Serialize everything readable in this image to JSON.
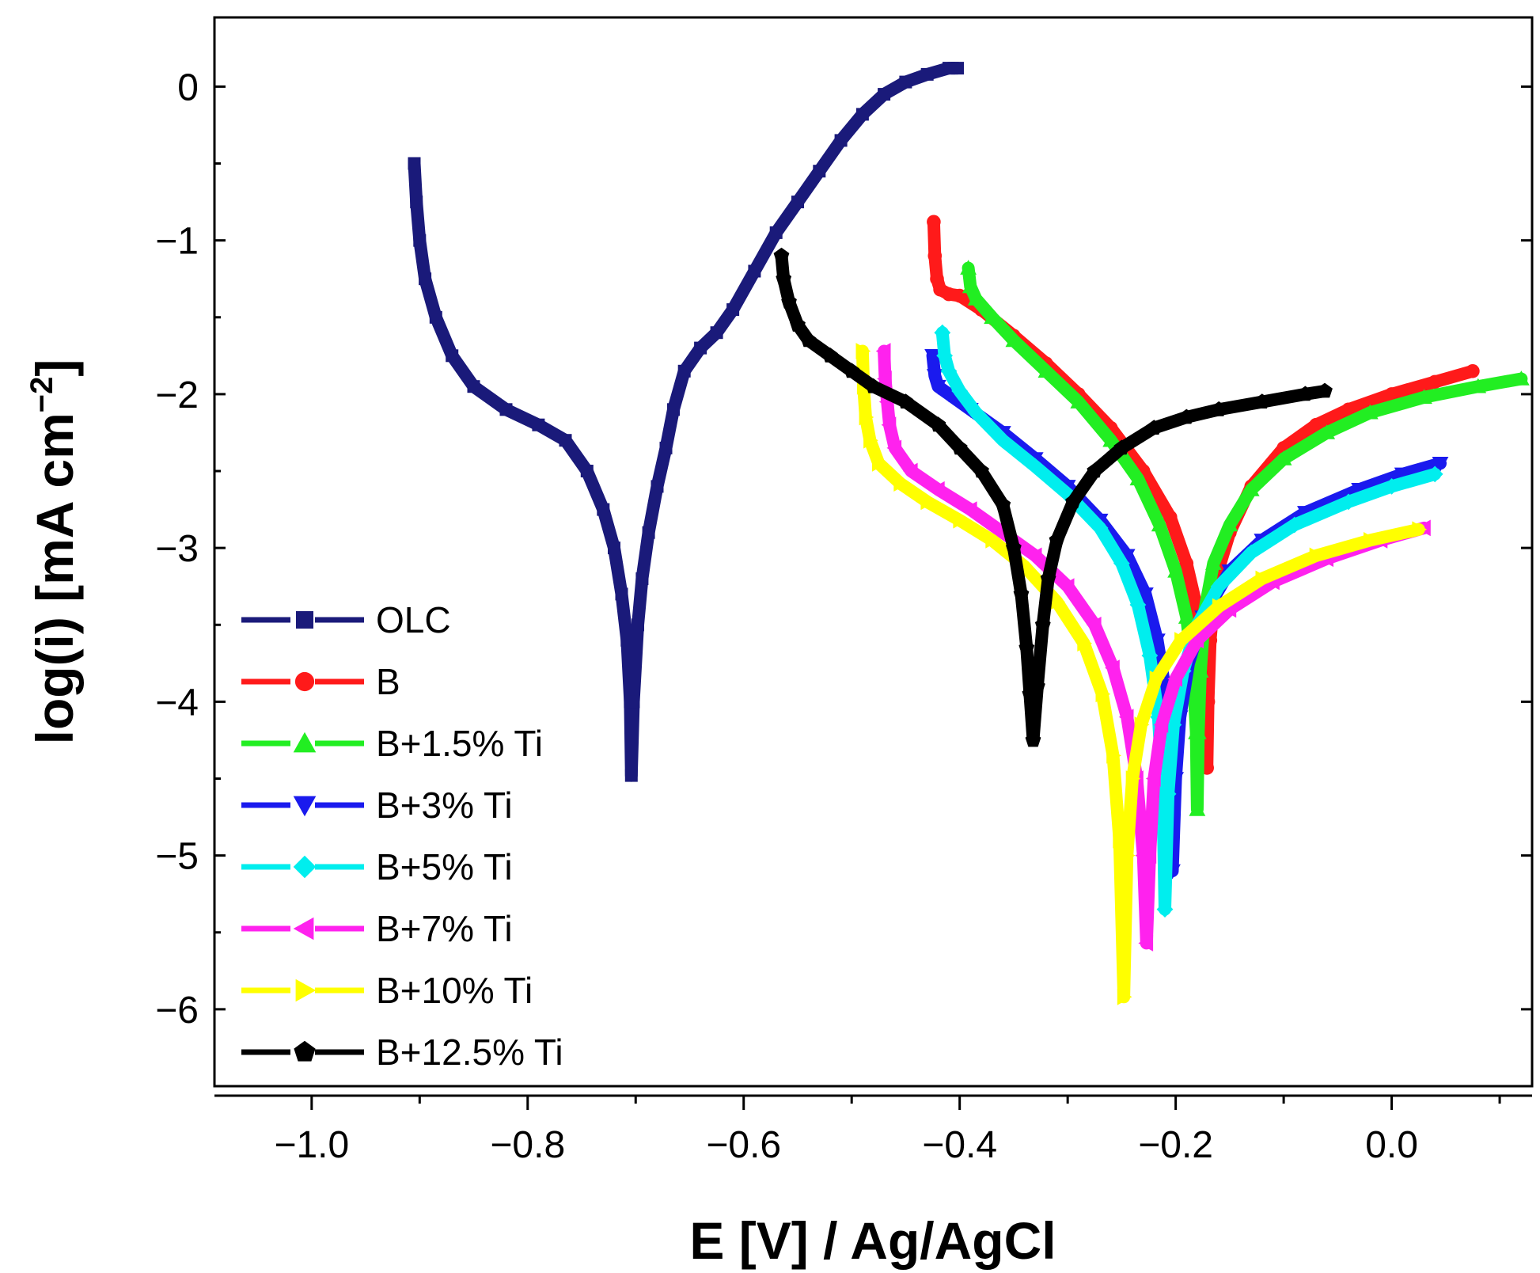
{
  "chart_data": {
    "type": "line",
    "title": "",
    "xlabel": "E [V] / Ag/AgCl",
    "ylabel_main": "log(i) [mA cm",
    "ylabel_sup": "−2",
    "ylabel_close": "]",
    "xlim": [
      -1.09,
      0.13
    ],
    "ylim": [
      -6.5,
      0.45
    ],
    "xticks": [
      -1.0,
      -0.8,
      -0.6,
      -0.4,
      -0.2,
      0.0
    ],
    "xtick_labels": [
      "−1.0",
      "−0.8",
      "−0.6",
      "−0.4",
      "−0.2",
      "0.0"
    ],
    "yticks": [
      0,
      -1,
      -2,
      -3,
      -4,
      -5,
      -6
    ],
    "ytick_labels": [
      "0",
      "−1",
      "−2",
      "−3",
      "−4",
      "−5",
      "−6"
    ],
    "grid": false,
    "legend_position": "bottom-left",
    "series": [
      {
        "name": "OLC",
        "color": "#1a1a7a",
        "marker": "square",
        "points": [
          [
            -0.905,
            -0.5
          ],
          [
            -0.903,
            -0.75
          ],
          [
            -0.9,
            -1.0
          ],
          [
            -0.895,
            -1.25
          ],
          [
            -0.885,
            -1.5
          ],
          [
            -0.87,
            -1.75
          ],
          [
            -0.85,
            -1.95
          ],
          [
            -0.82,
            -2.1
          ],
          [
            -0.79,
            -2.2
          ],
          [
            -0.765,
            -2.3
          ],
          [
            -0.745,
            -2.5
          ],
          [
            -0.73,
            -2.75
          ],
          [
            -0.72,
            -3.0
          ],
          [
            -0.713,
            -3.3
          ],
          [
            -0.708,
            -3.6
          ],
          [
            -0.705,
            -4.0
          ],
          [
            -0.704,
            -4.48
          ],
          [
            -0.702,
            -4.0
          ],
          [
            -0.698,
            -3.5
          ],
          [
            -0.694,
            -3.2
          ],
          [
            -0.688,
            -2.9
          ],
          [
            -0.68,
            -2.6
          ],
          [
            -0.672,
            -2.35
          ],
          [
            -0.665,
            -2.1
          ],
          [
            -0.655,
            -1.85
          ],
          [
            -0.64,
            -1.7
          ],
          [
            -0.625,
            -1.6
          ],
          [
            -0.61,
            -1.45
          ],
          [
            -0.59,
            -1.2
          ],
          [
            -0.57,
            -0.95
          ],
          [
            -0.55,
            -0.75
          ],
          [
            -0.53,
            -0.55
          ],
          [
            -0.51,
            -0.35
          ],
          [
            -0.49,
            -0.18
          ],
          [
            -0.47,
            -0.05
          ],
          [
            -0.45,
            0.03
          ],
          [
            -0.43,
            0.08
          ],
          [
            -0.41,
            0.12
          ],
          [
            -0.402,
            0.12
          ]
        ]
      },
      {
        "name": "B",
        "color": "#ff1a1a",
        "marker": "circle",
        "points": [
          [
            -0.424,
            -0.88
          ],
          [
            -0.423,
            -1.1
          ],
          [
            -0.421,
            -1.25
          ],
          [
            -0.418,
            -1.32
          ],
          [
            -0.41,
            -1.35
          ],
          [
            -0.4,
            -1.36
          ],
          [
            -0.38,
            -1.45
          ],
          [
            -0.35,
            -1.62
          ],
          [
            -0.32,
            -1.8
          ],
          [
            -0.29,
            -2.0
          ],
          [
            -0.26,
            -2.22
          ],
          [
            -0.23,
            -2.5
          ],
          [
            -0.205,
            -2.8
          ],
          [
            -0.19,
            -3.1
          ],
          [
            -0.18,
            -3.4
          ],
          [
            -0.175,
            -3.7
          ],
          [
            -0.172,
            -4.0
          ],
          [
            -0.171,
            -4.43
          ],
          [
            -0.17,
            -4.0
          ],
          [
            -0.168,
            -3.6
          ],
          [
            -0.163,
            -3.2
          ],
          [
            -0.15,
            -2.9
          ],
          [
            -0.13,
            -2.6
          ],
          [
            -0.1,
            -2.35
          ],
          [
            -0.07,
            -2.2
          ],
          [
            -0.04,
            -2.1
          ],
          [
            0.0,
            -2.0
          ],
          [
            0.04,
            -1.92
          ],
          [
            0.075,
            -1.85
          ]
        ]
      },
      {
        "name": "B+1.5% Ti",
        "color": "#22ee22",
        "marker": "triangle-up",
        "points": [
          [
            -0.392,
            -1.18
          ],
          [
            -0.39,
            -1.3
          ],
          [
            -0.385,
            -1.38
          ],
          [
            -0.37,
            -1.5
          ],
          [
            -0.35,
            -1.65
          ],
          [
            -0.32,
            -1.85
          ],
          [
            -0.29,
            -2.05
          ],
          [
            -0.26,
            -2.3
          ],
          [
            -0.235,
            -2.55
          ],
          [
            -0.215,
            -2.85
          ],
          [
            -0.2,
            -3.15
          ],
          [
            -0.19,
            -3.45
          ],
          [
            -0.184,
            -3.8
          ],
          [
            -0.181,
            -4.2
          ],
          [
            -0.18,
            -4.7
          ],
          [
            -0.179,
            -4.2
          ],
          [
            -0.177,
            -3.8
          ],
          [
            -0.173,
            -3.4
          ],
          [
            -0.165,
            -3.1
          ],
          [
            -0.15,
            -2.85
          ],
          [
            -0.13,
            -2.62
          ],
          [
            -0.1,
            -2.42
          ],
          [
            -0.06,
            -2.25
          ],
          [
            -0.02,
            -2.12
          ],
          [
            0.03,
            -2.02
          ],
          [
            0.08,
            -1.95
          ],
          [
            0.12,
            -1.9
          ]
        ]
      },
      {
        "name": "B+3% Ti",
        "color": "#1a1aee",
        "marker": "triangle-down",
        "points": [
          [
            -0.425,
            -1.75
          ],
          [
            -0.423,
            -1.88
          ],
          [
            -0.42,
            -1.95
          ],
          [
            -0.41,
            -2.0
          ],
          [
            -0.39,
            -2.1
          ],
          [
            -0.36,
            -2.25
          ],
          [
            -0.33,
            -2.42
          ],
          [
            -0.3,
            -2.6
          ],
          [
            -0.27,
            -2.82
          ],
          [
            -0.245,
            -3.05
          ],
          [
            -0.228,
            -3.3
          ],
          [
            -0.217,
            -3.6
          ],
          [
            -0.209,
            -3.95
          ],
          [
            -0.205,
            -4.4
          ],
          [
            -0.203,
            -5.1
          ],
          [
            -0.2,
            -4.5
          ],
          [
            -0.196,
            -4.1
          ],
          [
            -0.188,
            -3.75
          ],
          [
            -0.175,
            -3.45
          ],
          [
            -0.15,
            -3.15
          ],
          [
            -0.12,
            -2.95
          ],
          [
            -0.08,
            -2.77
          ],
          [
            -0.03,
            -2.62
          ],
          [
            0.01,
            -2.52
          ],
          [
            0.045,
            -2.45
          ]
        ]
      },
      {
        "name": "B+5% Ti",
        "color": "#00eeee",
        "marker": "diamond",
        "points": [
          [
            -0.416,
            -1.6
          ],
          [
            -0.414,
            -1.75
          ],
          [
            -0.41,
            -1.85
          ],
          [
            -0.4,
            -1.98
          ],
          [
            -0.385,
            -2.12
          ],
          [
            -0.36,
            -2.3
          ],
          [
            -0.33,
            -2.47
          ],
          [
            -0.3,
            -2.65
          ],
          [
            -0.27,
            -2.87
          ],
          [
            -0.25,
            -3.1
          ],
          [
            -0.235,
            -3.37
          ],
          [
            -0.224,
            -3.7
          ],
          [
            -0.216,
            -4.1
          ],
          [
            -0.212,
            -4.6
          ],
          [
            -0.21,
            -5.35
          ],
          [
            -0.207,
            -4.6
          ],
          [
            -0.202,
            -4.15
          ],
          [
            -0.193,
            -3.8
          ],
          [
            -0.18,
            -3.5
          ],
          [
            -0.16,
            -3.25
          ],
          [
            -0.13,
            -3.03
          ],
          [
            -0.09,
            -2.85
          ],
          [
            -0.04,
            -2.7
          ],
          [
            0.0,
            -2.6
          ],
          [
            0.04,
            -2.52
          ]
        ]
      },
      {
        "name": "B+7% Ti",
        "color": "#ff22ee",
        "marker": "triangle-left",
        "points": [
          [
            -0.47,
            -1.72
          ],
          [
            -0.469,
            -1.9
          ],
          [
            -0.467,
            -2.05
          ],
          [
            -0.465,
            -2.2
          ],
          [
            -0.46,
            -2.35
          ],
          [
            -0.445,
            -2.5
          ],
          [
            -0.42,
            -2.62
          ],
          [
            -0.39,
            -2.75
          ],
          [
            -0.36,
            -2.9
          ],
          [
            -0.33,
            -3.05
          ],
          [
            -0.3,
            -3.25
          ],
          [
            -0.275,
            -3.5
          ],
          [
            -0.258,
            -3.78
          ],
          [
            -0.245,
            -4.1
          ],
          [
            -0.236,
            -4.5
          ],
          [
            -0.23,
            -5.0
          ],
          [
            -0.227,
            -5.57
          ],
          [
            -0.224,
            -5.0
          ],
          [
            -0.22,
            -4.5
          ],
          [
            -0.213,
            -4.15
          ],
          [
            -0.2,
            -3.85
          ],
          [
            -0.18,
            -3.6
          ],
          [
            -0.15,
            -3.4
          ],
          [
            -0.11,
            -3.22
          ],
          [
            -0.06,
            -3.07
          ],
          [
            -0.01,
            -2.95
          ],
          [
            0.03,
            -2.87
          ]
        ]
      },
      {
        "name": "B+10% Ti",
        "color": "#ffff00",
        "marker": "triangle-right",
        "points": [
          [
            -0.49,
            -1.72
          ],
          [
            -0.489,
            -1.95
          ],
          [
            -0.487,
            -2.15
          ],
          [
            -0.483,
            -2.3
          ],
          [
            -0.475,
            -2.45
          ],
          [
            -0.455,
            -2.58
          ],
          [
            -0.43,
            -2.7
          ],
          [
            -0.4,
            -2.82
          ],
          [
            -0.37,
            -2.95
          ],
          [
            -0.34,
            -3.12
          ],
          [
            -0.31,
            -3.35
          ],
          [
            -0.285,
            -3.62
          ],
          [
            -0.268,
            -3.95
          ],
          [
            -0.258,
            -4.35
          ],
          [
            -0.252,
            -4.9
          ],
          [
            -0.248,
            -5.92
          ],
          [
            -0.245,
            -5.0
          ],
          [
            -0.24,
            -4.5
          ],
          [
            -0.232,
            -4.15
          ],
          [
            -0.218,
            -3.85
          ],
          [
            -0.195,
            -3.6
          ],
          [
            -0.16,
            -3.38
          ],
          [
            -0.12,
            -3.2
          ],
          [
            -0.07,
            -3.05
          ],
          [
            -0.02,
            -2.95
          ],
          [
            0.025,
            -2.88
          ]
        ]
      },
      {
        "name": "B+12.5% Ti",
        "color": "#000000",
        "marker": "pentagon",
        "points": [
          [
            -0.565,
            -1.1
          ],
          [
            -0.563,
            -1.25
          ],
          [
            -0.558,
            -1.4
          ],
          [
            -0.55,
            -1.55
          ],
          [
            -0.54,
            -1.65
          ],
          [
            -0.52,
            -1.75
          ],
          [
            -0.5,
            -1.85
          ],
          [
            -0.48,
            -1.95
          ],
          [
            -0.45,
            -2.05
          ],
          [
            -0.42,
            -2.2
          ],
          [
            -0.4,
            -2.35
          ],
          [
            -0.38,
            -2.5
          ],
          [
            -0.36,
            -2.72
          ],
          [
            -0.35,
            -3.0
          ],
          [
            -0.343,
            -3.3
          ],
          [
            -0.338,
            -3.65
          ],
          [
            -0.335,
            -3.95
          ],
          [
            -0.332,
            -4.25
          ],
          [
            -0.328,
            -3.9
          ],
          [
            -0.323,
            -3.5
          ],
          [
            -0.318,
            -3.2
          ],
          [
            -0.31,
            -2.95
          ],
          [
            -0.295,
            -2.7
          ],
          [
            -0.275,
            -2.5
          ],
          [
            -0.25,
            -2.35
          ],
          [
            -0.22,
            -2.22
          ],
          [
            -0.19,
            -2.15
          ],
          [
            -0.16,
            -2.1
          ],
          [
            -0.12,
            -2.05
          ],
          [
            -0.08,
            -2.0
          ],
          [
            -0.062,
            -1.98
          ]
        ]
      }
    ]
  }
}
